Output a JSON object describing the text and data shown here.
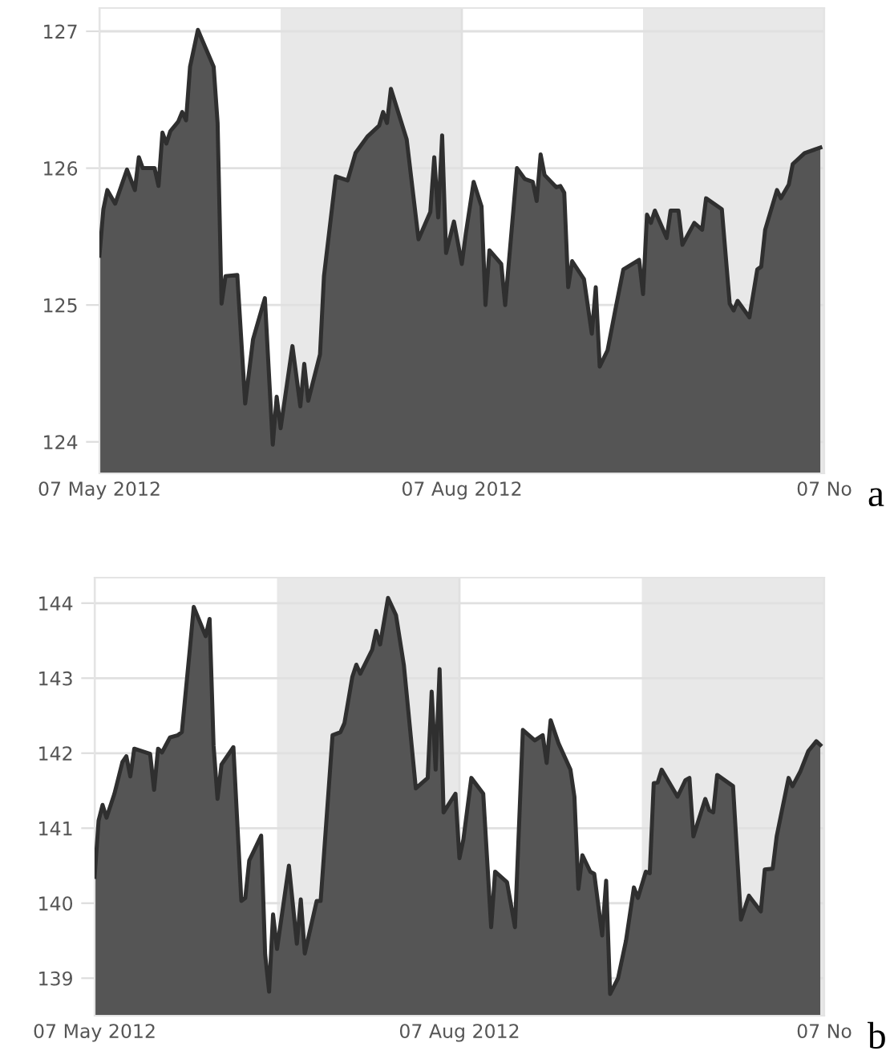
{
  "chart_data": [
    {
      "type": "area",
      "xlim": [
        "2012-05-07",
        "2012-11-07"
      ],
      "xticks": [
        {
          "value": "2012-05-07",
          "label": "07 May 2012"
        },
        {
          "value": "2012-08-07",
          "label": "07 Aug 2012"
        },
        {
          "value": "2012-11-07",
          "label": "07 No"
        }
      ],
      "ylim": [
        123.77,
        127.17
      ],
      "yticks": [
        124,
        125,
        126,
        127
      ],
      "grid": true,
      "bands": [
        {
          "axis": "x",
          "from": "2012-06-22",
          "to": "2012-08-07",
          "color": "#e8e8e8"
        },
        {
          "axis": "x",
          "from": "2012-09-22",
          "to": "2012-11-07",
          "color": "#e8e8e8"
        }
      ],
      "x": [
        "2012-05-07",
        "2012-05-08",
        "2012-05-09",
        "2012-05-11",
        "2012-05-14",
        "2012-05-16",
        "2012-05-17",
        "2012-05-18",
        "2012-05-21",
        "2012-05-22",
        "2012-05-23",
        "2012-05-24",
        "2012-05-25",
        "2012-05-27",
        "2012-05-28",
        "2012-05-29",
        "2012-05-30",
        "2012-06-01",
        "2012-06-05",
        "2012-06-06",
        "2012-06-07",
        "2012-06-08",
        "2012-06-11",
        "2012-06-13",
        "2012-06-15",
        "2012-06-18",
        "2012-06-20",
        "2012-06-21",
        "2012-06-22",
        "2012-06-25",
        "2012-06-27",
        "2012-06-28",
        "2012-06-29",
        "2012-07-02",
        "2012-07-03",
        "2012-07-06",
        "2012-07-09",
        "2012-07-11",
        "2012-07-14",
        "2012-07-17",
        "2012-07-18",
        "2012-07-19",
        "2012-07-20",
        "2012-07-24",
        "2012-07-27",
        "2012-07-30",
        "2012-07-31",
        "2012-08-01",
        "2012-08-02",
        "2012-08-03",
        "2012-08-05",
        "2012-08-07",
        "2012-08-08",
        "2012-08-10",
        "2012-08-12",
        "2012-08-13",
        "2012-08-14",
        "2012-08-17",
        "2012-08-18",
        "2012-08-21",
        "2012-08-23",
        "2012-08-25",
        "2012-08-26",
        "2012-08-27",
        "2012-08-28",
        "2012-08-31",
        "2012-09-01",
        "2012-09-02",
        "2012-09-03",
        "2012-09-04",
        "2012-09-07",
        "2012-09-09",
        "2012-09-10",
        "2012-09-11",
        "2012-09-13",
        "2012-09-15",
        "2012-09-17",
        "2012-09-21",
        "2012-09-22",
        "2012-09-23",
        "2012-09-24",
        "2012-09-25",
        "2012-09-28",
        "2012-09-29",
        "2012-10-01",
        "2012-10-02",
        "2012-10-05",
        "2012-10-07",
        "2012-10-08",
        "2012-10-12",
        "2012-10-14",
        "2012-10-15",
        "2012-10-16",
        "2012-10-19",
        "2012-10-21",
        "2012-10-22",
        "2012-10-23",
        "2012-10-26",
        "2012-10-27",
        "2012-10-29",
        "2012-10-30",
        "2012-11-02",
        "2012-11-06"
      ],
      "series": [
        {
          "color": "#555555",
          "values": [
            125.36,
            125.7,
            125.84,
            125.74,
            125.99,
            125.84,
            126.08,
            126.0,
            126.0,
            125.87,
            126.26,
            126.18,
            126.27,
            126.34,
            126.41,
            126.35,
            126.74,
            127.01,
            126.74,
            126.33,
            125.01,
            125.21,
            125.22,
            124.28,
            124.75,
            125.05,
            123.98,
            124.33,
            124.1,
            124.7,
            124.26,
            124.57,
            124.3,
            124.64,
            125.21,
            125.94,
            125.91,
            126.11,
            126.23,
            126.31,
            126.41,
            126.33,
            126.58,
            126.21,
            125.48,
            125.68,
            126.08,
            125.64,
            126.24,
            125.38,
            125.61,
            125.3,
            125.52,
            125.9,
            125.72,
            125.0,
            125.4,
            125.3,
            125.0,
            126.0,
            125.92,
            125.9,
            125.76,
            126.1,
            125.95,
            125.86,
            125.87,
            125.82,
            125.13,
            125.32,
            125.19,
            124.79,
            125.13,
            124.55,
            124.67,
            124.97,
            125.26,
            125.33,
            125.08,
            125.66,
            125.6,
            125.69,
            125.49,
            125.69,
            125.69,
            125.44,
            125.6,
            125.55,
            125.78,
            125.7,
            125.01,
            124.96,
            125.03,
            124.91,
            125.26,
            125.28,
            125.55,
            125.84,
            125.78,
            125.88,
            126.03,
            126.11,
            126.15
          ]
        }
      ],
      "annotations": [
        "a"
      ]
    },
    {
      "type": "area",
      "xlim": [
        "2012-05-07",
        "2012-11-07"
      ],
      "xticks": [
        {
          "value": "2012-05-07",
          "label": "07 May 2012"
        },
        {
          "value": "2012-08-07",
          "label": "07 Aug 2012"
        },
        {
          "value": "2012-11-07",
          "label": "07 No"
        }
      ],
      "ylim": [
        138.5,
        144.34
      ],
      "yticks": [
        139,
        140,
        141,
        142,
        143,
        144
      ],
      "grid": true,
      "bands": [
        {
          "axis": "x",
          "from": "2012-06-22",
          "to": "2012-08-07",
          "color": "#e8e8e8"
        },
        {
          "axis": "x",
          "from": "2012-09-22",
          "to": "2012-11-07",
          "color": "#e8e8e8"
        }
      ],
      "x": [
        "2012-05-07",
        "2012-05-08",
        "2012-05-09",
        "2012-05-10",
        "2012-05-12",
        "2012-05-14",
        "2012-05-15",
        "2012-05-16",
        "2012-05-17",
        "2012-05-21",
        "2012-05-22",
        "2012-05-23",
        "2012-05-24",
        "2012-05-25",
        "2012-05-26",
        "2012-05-28",
        "2012-05-29",
        "2012-05-31",
        "2012-06-01",
        "2012-06-04",
        "2012-06-05",
        "2012-06-06",
        "2012-06-07",
        "2012-06-08",
        "2012-06-11",
        "2012-06-13",
        "2012-06-14",
        "2012-06-15",
        "2012-06-18",
        "2012-06-19",
        "2012-06-20",
        "2012-06-21",
        "2012-06-22",
        "2012-06-25",
        "2012-06-27",
        "2012-06-28",
        "2012-06-29",
        "2012-07-02",
        "2012-07-03",
        "2012-07-06",
        "2012-07-08",
        "2012-07-09",
        "2012-07-11",
        "2012-07-12",
        "2012-07-13",
        "2012-07-16",
        "2012-07-17",
        "2012-07-18",
        "2012-07-20",
        "2012-07-22",
        "2012-07-24",
        "2012-07-27",
        "2012-07-30",
        "2012-07-31",
        "2012-08-01",
        "2012-08-02",
        "2012-08-03",
        "2012-08-06",
        "2012-08-07",
        "2012-08-08",
        "2012-08-10",
        "2012-08-13",
        "2012-08-15",
        "2012-08-16",
        "2012-08-19",
        "2012-08-21",
        "2012-08-23",
        "2012-08-26",
        "2012-08-28",
        "2012-08-29",
        "2012-08-30",
        "2012-09-01",
        "2012-09-04",
        "2012-09-05",
        "2012-09-06",
        "2012-09-07",
        "2012-09-09",
        "2012-09-10",
        "2012-09-12",
        "2012-09-13",
        "2012-09-14",
        "2012-09-16",
        "2012-09-18",
        "2012-09-20",
        "2012-09-21",
        "2012-09-23",
        "2012-09-24",
        "2012-09-25",
        "2012-09-26",
        "2012-09-27",
        "2012-10-01",
        "2012-10-03",
        "2012-10-04",
        "2012-10-05",
        "2012-10-08",
        "2012-10-09",
        "2012-10-10",
        "2012-10-11",
        "2012-10-15",
        "2012-10-17",
        "2012-10-19",
        "2012-10-22",
        "2012-10-23",
        "2012-10-25",
        "2012-10-26",
        "2012-10-29",
        "2012-10-30",
        "2012-11-01",
        "2012-11-03",
        "2012-11-05",
        "2012-11-06"
      ],
      "series": [
        {
          "color": "#555555",
          "values": [
            140.35,
            141.1,
            141.31,
            141.14,
            141.46,
            141.88,
            141.96,
            141.69,
            142.06,
            141.99,
            141.51,
            142.06,
            142.01,
            142.11,
            142.21,
            142.24,
            142.28,
            143.38,
            143.95,
            143.56,
            143.79,
            142.1,
            141.39,
            141.85,
            142.08,
            140.03,
            140.07,
            140.57,
            140.9,
            139.32,
            138.82,
            139.85,
            139.39,
            140.5,
            139.46,
            140.05,
            139.33,
            140.03,
            140.03,
            142.24,
            142.28,
            142.4,
            143.02,
            143.18,
            143.06,
            143.38,
            143.63,
            143.45,
            144.07,
            143.84,
            143.17,
            141.53,
            141.67,
            142.82,
            141.78,
            143.12,
            141.21,
            141.46,
            140.6,
            140.85,
            141.67,
            141.46,
            139.68,
            140.42,
            140.28,
            139.68,
            142.31,
            142.17,
            142.24,
            141.87,
            142.44,
            142.13,
            141.78,
            141.42,
            140.19,
            140.64,
            140.42,
            140.39,
            139.57,
            140.3,
            138.79,
            139.0,
            139.5,
            140.21,
            140.07,
            140.42,
            140.4,
            141.6,
            141.61,
            141.78,
            141.42,
            141.64,
            141.67,
            140.89,
            141.39,
            141.24,
            141.21,
            141.71,
            141.56,
            139.78,
            140.1,
            139.89,
            140.45,
            140.46,
            140.89,
            141.67,
            141.56,
            141.76,
            142.03,
            142.16,
            142.11
          ]
        }
      ],
      "annotations": [
        "b"
      ]
    }
  ]
}
